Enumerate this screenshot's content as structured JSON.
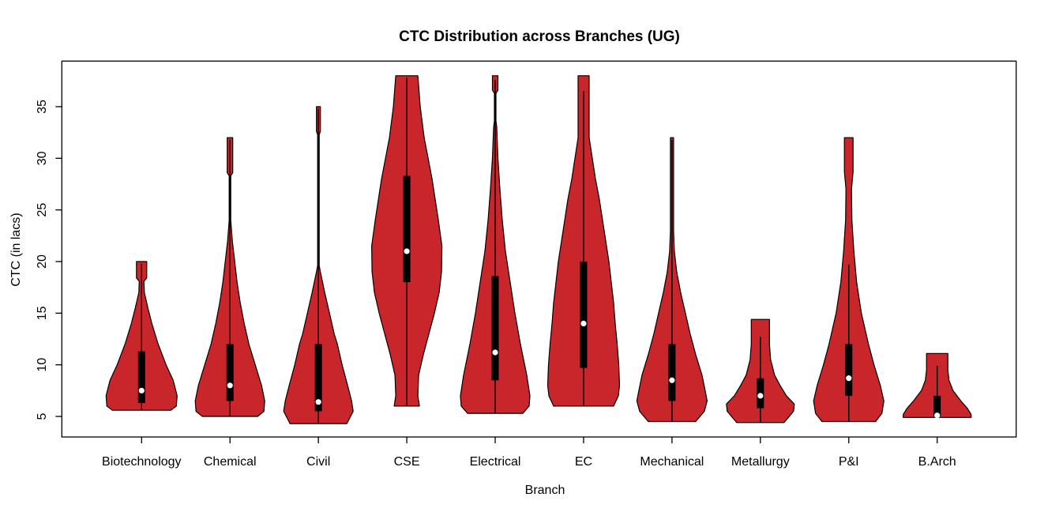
{
  "chart_data": {
    "type": "violin",
    "title": "CTC Distribution across Branches (UG)",
    "xlabel": "Branch",
    "ylabel": "CTC (in lacs)",
    "y_ticks": [
      5,
      10,
      15,
      20,
      25,
      30,
      35
    ],
    "ylim": [
      2.9,
      39.4
    ],
    "style": {
      "fill": "#C8262A",
      "outline": "#000000",
      "box": "#000000",
      "median_dot": "#FFFFFF",
      "background": "#FFFFFF"
    },
    "series": [
      {
        "label": "Biotechnology",
        "min": 5.6,
        "max": 20,
        "q1": 6.3,
        "median": 7.5,
        "q3": 11.3,
        "whisker_low": 5.6,
        "whisker_high": 19.8,
        "profile": [
          [
            20,
            6.5
          ],
          [
            18.4,
            6.5
          ],
          [
            18.1,
            3
          ],
          [
            17,
            3.5
          ],
          [
            15.5,
            8
          ],
          [
            14,
            13
          ],
          [
            12,
            21
          ],
          [
            10,
            31
          ],
          [
            8.5,
            40
          ],
          [
            7,
            45
          ],
          [
            6,
            44
          ],
          [
            5.6,
            37
          ]
        ]
      },
      {
        "label": "Chemical",
        "min": 5,
        "max": 32,
        "q1": 6.5,
        "median": 8,
        "q3": 12,
        "whisker_low": 5,
        "whisker_high": 31.8,
        "profile": [
          [
            32,
            3.5
          ],
          [
            28.6,
            3.5
          ],
          [
            28.3,
            1
          ],
          [
            24,
            1
          ],
          [
            22,
            3
          ],
          [
            20,
            6
          ],
          [
            18,
            9
          ],
          [
            16,
            13
          ],
          [
            14,
            18
          ],
          [
            12,
            24
          ],
          [
            10,
            32
          ],
          [
            8,
            40
          ],
          [
            6.5,
            44
          ],
          [
            5.5,
            43
          ],
          [
            5,
            35
          ]
        ]
      },
      {
        "label": "Civil",
        "min": 4.3,
        "max": 35,
        "q1": 5.5,
        "median": 6.4,
        "q3": 12,
        "whisker_low": 4.3,
        "whisker_high": 34.8,
        "profile": [
          [
            35,
            2.5
          ],
          [
            32.6,
            2.5
          ],
          [
            32.3,
            1
          ],
          [
            19.6,
            1
          ],
          [
            19,
            2.5
          ],
          [
            17,
            8
          ],
          [
            15,
            14
          ],
          [
            13,
            20
          ],
          [
            12,
            24
          ],
          [
            10,
            30
          ],
          [
            8,
            37
          ],
          [
            6.5,
            42
          ],
          [
            5.5,
            44
          ],
          [
            4.3,
            36
          ]
        ]
      },
      {
        "label": "CSE",
        "min": 6,
        "max": 38,
        "q1": 18,
        "median": 21,
        "q3": 28.3,
        "whisker_low": 6,
        "whisker_high": 37.8,
        "profile": [
          [
            38,
            14
          ],
          [
            35,
            17
          ],
          [
            32,
            22
          ],
          [
            30,
            27
          ],
          [
            28,
            32
          ],
          [
            26,
            36
          ],
          [
            24,
            40
          ],
          [
            21.5,
            44.5
          ],
          [
            19,
            44
          ],
          [
            17,
            41
          ],
          [
            15,
            35
          ],
          [
            13,
            28
          ],
          [
            11,
            21
          ],
          [
            9,
            15
          ],
          [
            7,
            14
          ],
          [
            6,
            16
          ]
        ]
      },
      {
        "label": "Electrical",
        "min": 5.3,
        "max": 38,
        "q1": 8.5,
        "median": 11.2,
        "q3": 18.6,
        "whisker_low": 5.3,
        "whisker_high": 37.6,
        "profile": [
          [
            38,
            3.5
          ],
          [
            36.6,
            3.5
          ],
          [
            36.3,
            1
          ],
          [
            33.6,
            1
          ],
          [
            33,
            2
          ],
          [
            30,
            3.5
          ],
          [
            27,
            6
          ],
          [
            24,
            9
          ],
          [
            21,
            13
          ],
          [
            18,
            19
          ],
          [
            15,
            25
          ],
          [
            12,
            32
          ],
          [
            9,
            40
          ],
          [
            7,
            44
          ],
          [
            6,
            43
          ],
          [
            5.3,
            35
          ]
        ]
      },
      {
        "label": "EC",
        "min": 6,
        "max": 38,
        "q1": 9.7,
        "median": 14,
        "q3": 20,
        "whisker_low": 6,
        "whisker_high": 36.5,
        "profile": [
          [
            38,
            7
          ],
          [
            32,
            7
          ],
          [
            30,
            11
          ],
          [
            28,
            15
          ],
          [
            26,
            20
          ],
          [
            24,
            24
          ],
          [
            22,
            28
          ],
          [
            20,
            32
          ],
          [
            18,
            35
          ],
          [
            16,
            38
          ],
          [
            14,
            40
          ],
          [
            12,
            42.5
          ],
          [
            10,
            44.5
          ],
          [
            8,
            45.5
          ],
          [
            7,
            44
          ],
          [
            6,
            38
          ]
        ]
      },
      {
        "label": "Mechanical",
        "min": 4.5,
        "max": 32,
        "q1": 6.5,
        "median": 8.5,
        "q3": 12,
        "whisker_low": 4.5,
        "whisker_high": 31.8,
        "profile": [
          [
            32,
            2
          ],
          [
            23,
            2
          ],
          [
            21,
            3
          ],
          [
            19,
            6
          ],
          [
            17,
            11
          ],
          [
            15,
            17
          ],
          [
            13,
            23
          ],
          [
            11,
            30
          ],
          [
            9,
            38
          ],
          [
            7.5,
            42
          ],
          [
            6.5,
            44.5
          ],
          [
            5.5,
            41
          ],
          [
            4.5,
            30
          ]
        ]
      },
      {
        "label": "Metallurgy",
        "min": 4.4,
        "max": 14.4,
        "q1": 5.8,
        "median": 7,
        "q3": 8.7,
        "whisker_low": 4.4,
        "whisker_high": 12.7,
        "profile": [
          [
            14.4,
            11.5
          ],
          [
            12,
            11.5
          ],
          [
            10.5,
            13
          ],
          [
            9,
            18
          ],
          [
            8,
            25
          ],
          [
            7,
            33
          ],
          [
            6.2,
            43
          ],
          [
            5.5,
            42
          ],
          [
            4.4,
            30
          ]
        ]
      },
      {
        "label": "P&I",
        "min": 4.5,
        "max": 32,
        "q1": 7,
        "median": 8.7,
        "q3": 12,
        "whisker_low": 4.5,
        "whisker_high": 19.7,
        "profile": [
          [
            32,
            5.5
          ],
          [
            28.7,
            5.5
          ],
          [
            27,
            3.5
          ],
          [
            24,
            4
          ],
          [
            21,
            6.5
          ],
          [
            18,
            10
          ],
          [
            15,
            16
          ],
          [
            12,
            25
          ],
          [
            10,
            32
          ],
          [
            8,
            40
          ],
          [
            6.5,
            44.5
          ],
          [
            5.3,
            42
          ],
          [
            4.5,
            34
          ]
        ]
      },
      {
        "label": "B.Arch",
        "min": 4.9,
        "max": 11.1,
        "q1": 5,
        "median": 5.1,
        "q3": 7,
        "whisker_low": 4.9,
        "whisker_high": 9.9,
        "profile": [
          [
            11.1,
            13.5
          ],
          [
            9.5,
            13.5
          ],
          [
            8.5,
            15
          ],
          [
            7.5,
            20
          ],
          [
            6.5,
            30
          ],
          [
            5.8,
            38
          ],
          [
            5.2,
            43
          ],
          [
            4.9,
            43
          ]
        ]
      }
    ]
  }
}
